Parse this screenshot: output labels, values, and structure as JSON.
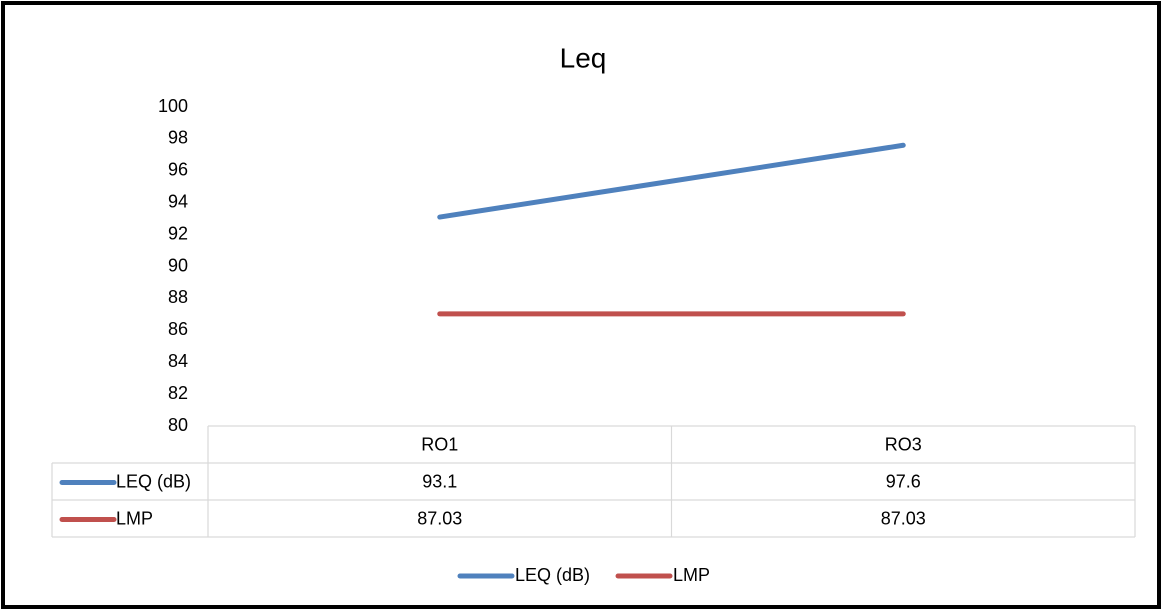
{
  "chart_data": {
    "type": "line",
    "title": "Leq",
    "categories": [
      "RO1",
      "RO3"
    ],
    "series": [
      {
        "name": "LEQ (dB)",
        "color": "#4f81bd",
        "values": [
          93.1,
          97.6
        ]
      },
      {
        "name": "LMP",
        "color": "#c0504d",
        "values": [
          87.03,
          87.03
        ]
      }
    ],
    "ylim": [
      80,
      100
    ],
    "yticks": [
      80,
      82,
      84,
      86,
      88,
      90,
      92,
      94,
      96,
      98,
      100
    ],
    "grid": false,
    "legend": "bottom",
    "data_table": true
  }
}
